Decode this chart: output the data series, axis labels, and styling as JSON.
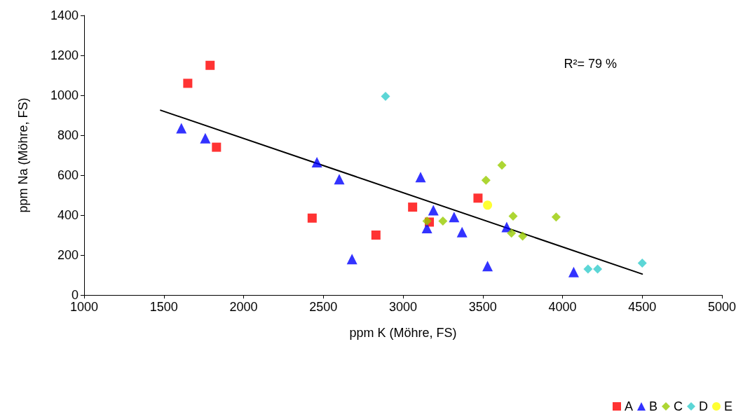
{
  "chart_data": {
    "type": "scatter",
    "xlabel": "ppm K (Möhre, FS)",
    "ylabel": "ppm Na (Möhre, FS)",
    "xlim": [
      1000,
      5000
    ],
    "xticks": [
      1000,
      1500,
      2000,
      2500,
      3000,
      3500,
      4000,
      4500,
      5000
    ],
    "ylim": [
      0,
      1400
    ],
    "yticks": [
      0,
      200,
      400,
      600,
      800,
      1000,
      1200,
      1400
    ],
    "grid": false,
    "legend": "bottom right",
    "annotations": [
      "R²= 79 %"
    ],
    "series": [
      {
        "name": "A",
        "color": "#ff0000",
        "marker": "square",
        "x": [
          1650,
          1790,
          1830,
          2430,
          2830,
          3060,
          3165,
          3470
        ],
        "values": [
          1060,
          1150,
          740,
          385,
          300,
          440,
          365,
          485
        ]
      },
      {
        "name": "B",
        "color": "#0000ff",
        "marker": "triangle",
        "x": [
          1610,
          1760,
          2460,
          2600,
          2680,
          3110,
          3190,
          3150,
          3320,
          3370,
          3530,
          3650,
          4070
        ],
        "values": [
          835,
          785,
          665,
          580,
          180,
          590,
          425,
          335,
          390,
          315,
          145,
          340,
          115
        ]
      },
      {
        "name": "C",
        "color": "#99cc00",
        "marker": "diamond",
        "x": [
          3520,
          3620,
          3150,
          3250,
          3690,
          3680,
          3750,
          3960
        ],
        "values": [
          575,
          650,
          370,
          370,
          395,
          310,
          295,
          390
        ]
      },
      {
        "name": "D",
        "color": "#33cccc",
        "marker": "diamond",
        "x": [
          2890,
          4160,
          4220,
          4500
        ],
        "values": [
          995,
          130,
          130,
          160
        ]
      },
      {
        "name": "E",
        "color": "#ffff00",
        "marker": "circle",
        "x": [
          3530
        ],
        "values": [
          450
        ]
      },
      {
        "type": "line",
        "color": "#000000",
        "marker": "none",
        "line_style": "solid",
        "x": [
          1480,
          4500
        ],
        "values": [
          925,
          105
        ]
      }
    ]
  }
}
